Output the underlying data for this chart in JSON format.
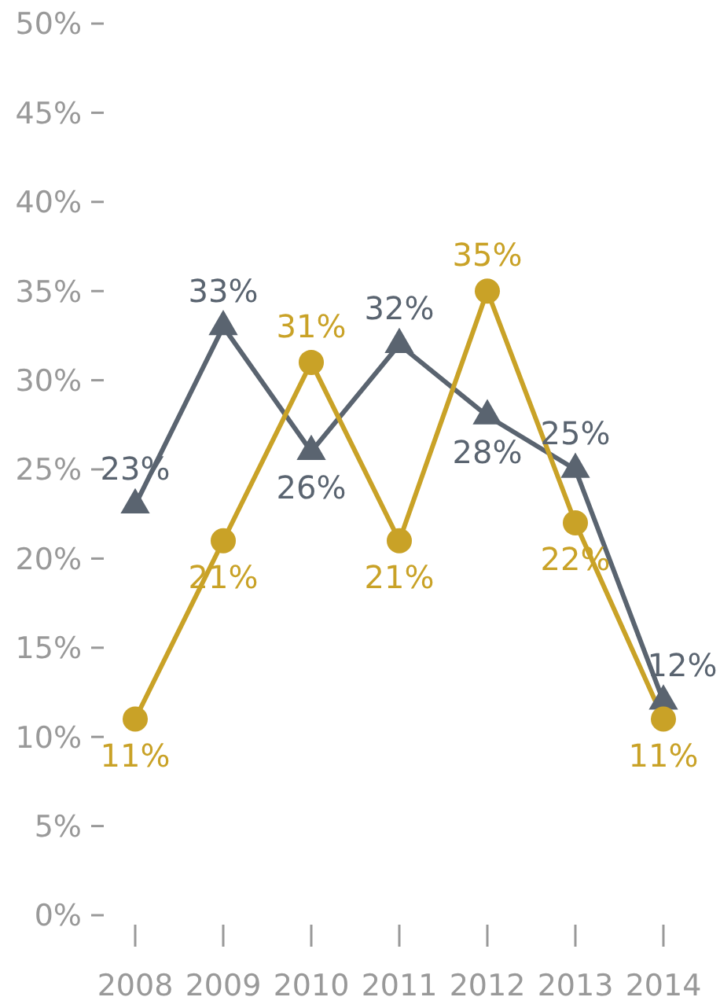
{
  "chart_data": {
    "type": "line",
    "categories": [
      "2008",
      "2009",
      "2010",
      "2011",
      "2012",
      "2013",
      "2014"
    ],
    "series": [
      {
        "color": "#5a6470",
        "marker": "triangle",
        "values": [
          23,
          33,
          26,
          32,
          28,
          25,
          12
        ],
        "value_labels": [
          "23%",
          "33%",
          "26%",
          "32%",
          "28%",
          "25%",
          "12%"
        ]
      },
      {
        "color": "#c9a227",
        "marker": "circle",
        "values": [
          11,
          21,
          31,
          21,
          35,
          22,
          11
        ],
        "value_labels": [
          "11%",
          "21%",
          "31%",
          "21%",
          "35%",
          "22%",
          "11%"
        ]
      }
    ],
    "ylim": [
      0,
      50
    ],
    "yticks": [
      {
        "value": 0,
        "label": "0%"
      },
      {
        "value": 5,
        "label": "5%"
      },
      {
        "value": 10,
        "label": "10%"
      },
      {
        "value": 15,
        "label": "15%"
      },
      {
        "value": 20,
        "label": "20%"
      },
      {
        "value": 25,
        "label": "25%"
      },
      {
        "value": 30,
        "label": "30%"
      },
      {
        "value": 35,
        "label": "35%"
      },
      {
        "value": 40,
        "label": "40%"
      },
      {
        "value": 45,
        "label": "45%"
      },
      {
        "value": 50,
        "label": "50%"
      }
    ],
    "grid": false
  }
}
